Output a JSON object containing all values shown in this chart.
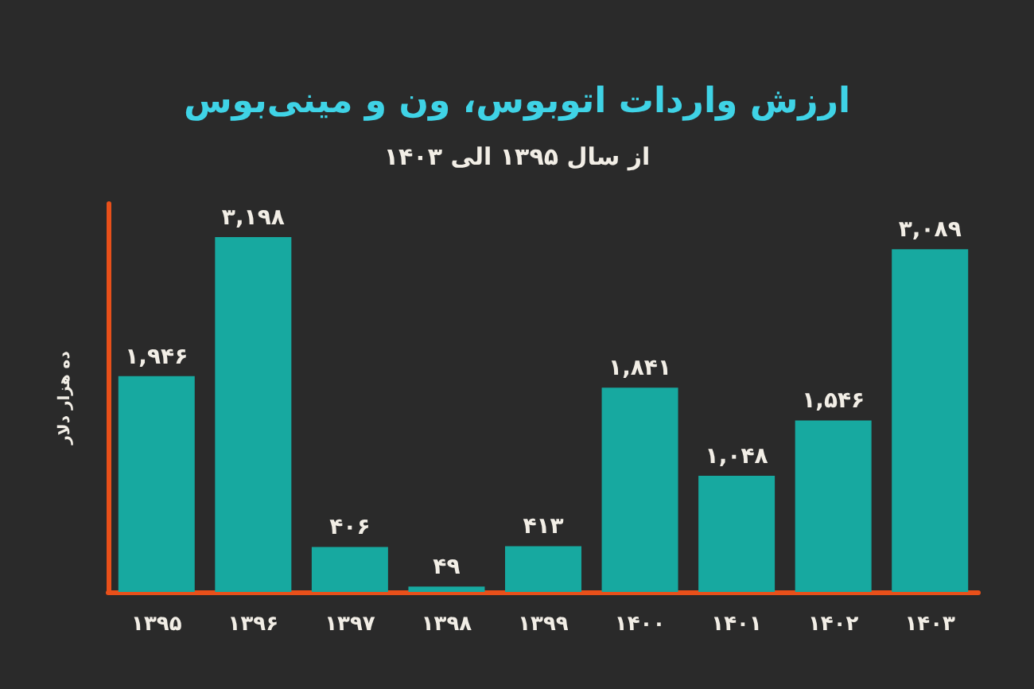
{
  "chart_data": {
    "type": "bar",
    "title": "ارزش واردات اتوبوس، ون و مینی‌بوس",
    "subtitle": "از سال ۱۳۹۵ الی ۱۴۰۳",
    "ylabel": "ده هزار دلار",
    "categories": [
      "۱۳۹۵",
      "۱۳۹۶",
      "۱۳۹۷",
      "۱۳۹۸",
      "۱۳۹۹",
      "۱۴۰۰",
      "۱۴۰۱",
      "۱۴۰۲",
      "۱۴۰۳"
    ],
    "values": [
      1946,
      3198,
      406,
      49,
      413,
      1841,
      1048,
      1546,
      3089
    ],
    "value_labels": [
      "۱,۹۴۶",
      "۳,۱۹۸",
      "۴۰۶",
      "۴۹",
      "۴۱۳",
      "۱,۸۴۱",
      "۱,۰۴۸",
      "۱,۵۴۶",
      "۳,۰۸۹"
    ],
    "color": "#17a9a0",
    "grid": false
  }
}
